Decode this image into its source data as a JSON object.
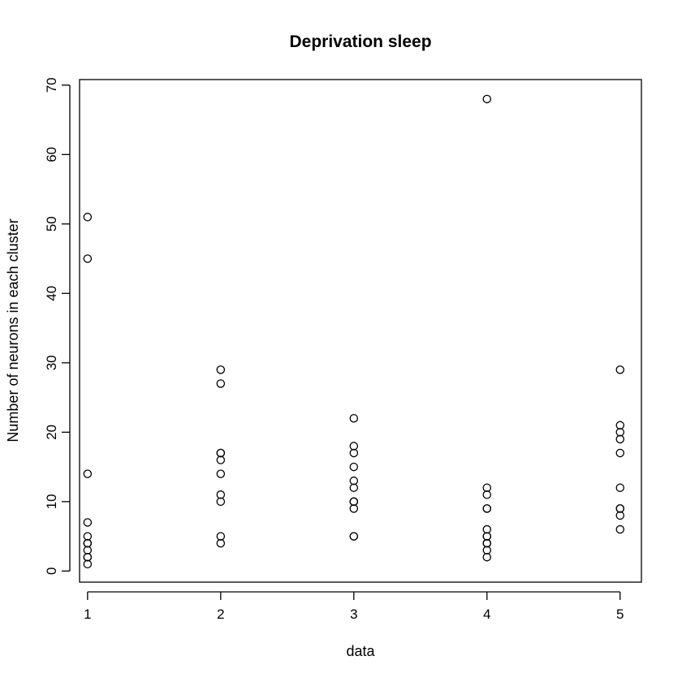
{
  "chart_data": {
    "type": "scatter",
    "title": "Deprivation sleep",
    "xlabel": "data",
    "ylabel": "Number of neurons in each cluster",
    "xlim": [
      0.94,
      5.16
    ],
    "ylim": [
      -1.6,
      70.8
    ],
    "x_ticks": [
      1,
      2,
      3,
      4,
      5
    ],
    "y_ticks": [
      0,
      10,
      20,
      30,
      40,
      50,
      60,
      70
    ],
    "grid": false,
    "legend": "none",
    "marker": "open-circle",
    "groups": [
      {
        "x": 1,
        "values": [
          51,
          45,
          14,
          7,
          5,
          4,
          4,
          3,
          2,
          2,
          1
        ]
      },
      {
        "x": 2,
        "values": [
          29,
          27,
          17,
          17,
          16,
          14,
          11,
          10,
          5,
          4
        ]
      },
      {
        "x": 3,
        "values": [
          22,
          18,
          17,
          15,
          13,
          12,
          10,
          10,
          10,
          9,
          5,
          5
        ]
      },
      {
        "x": 4,
        "values": [
          68,
          12,
          11,
          9,
          9,
          6,
          5,
          5,
          4,
          4,
          3,
          2
        ]
      },
      {
        "x": 5,
        "values": [
          29,
          21,
          20,
          19,
          17,
          12,
          9,
          9,
          8,
          6
        ]
      }
    ]
  }
}
